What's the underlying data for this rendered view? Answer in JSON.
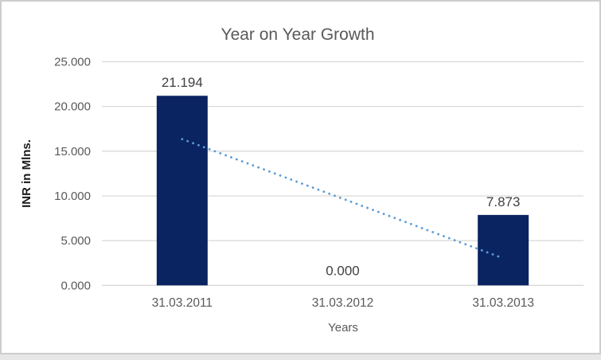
{
  "page": {
    "background": "#E7E7E7",
    "frame_border": "#CDCDCD",
    "frame_background": "#FFFFFF"
  },
  "chart_data": {
    "type": "bar",
    "title": "Year on Year Growth",
    "categories": [
      "31.03.2011",
      "31.03.2012",
      "31.03.2013"
    ],
    "values": [
      21.194,
      0.0,
      7.873
    ],
    "data_labels": [
      "21.194",
      "0.000",
      "7.873"
    ],
    "xlabel": "Years",
    "ylabel": "INR in Mlns.",
    "ylim": [
      0,
      25
    ],
    "ytick_step": 5,
    "ytick_labels": [
      "0.000",
      "5.000",
      "10.000",
      "15.000",
      "20.000",
      "25.000"
    ],
    "grid": true,
    "legend_position": "none",
    "trendline": {
      "type": "linear",
      "style": "dotted",
      "start": {
        "category": "31.03.2011",
        "value": 16.35
      },
      "end": {
        "category": "31.03.2013",
        "value": 3.03
      }
    },
    "colors": {
      "bar": "#0A2462",
      "trendline": "#5B9BD5",
      "gridline": "#D9D9D9",
      "title_text": "#595959",
      "tick_text": "#595959",
      "category_text": "#595959",
      "data_label_text": "#404040",
      "y_axis_title_text": "#1A1A1A",
      "x_axis_title_text": "#595959"
    }
  }
}
